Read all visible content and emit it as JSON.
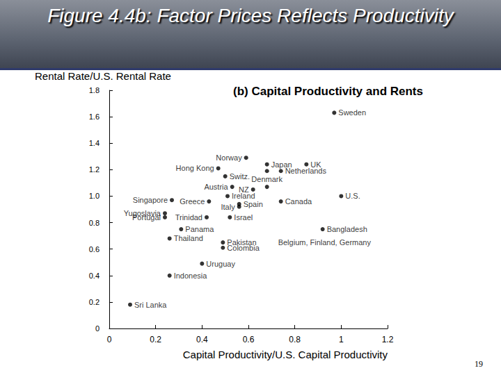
{
  "slide_title": "Figure 4.4b: Factor Prices Reflects Productivity",
  "page_number": "19",
  "chart_data": {
    "type": "scatter",
    "title": "(b) Capital Productivity and Rents",
    "x_label": "Capital Productivity/U.S. Capital Productivity",
    "y_label": "Rental Rate/U.S. Rental Rate",
    "labels": [
      "Sweden",
      "Norway",
      "Japan",
      "UK",
      "Hong Kong",
      "Switz.",
      "Denmark",
      "Netherlands",
      "Austria",
      "NZ",
      "Singapore",
      "Greece",
      "Ireland",
      "Spain",
      "Italy",
      "Canada",
      "U.S.",
      "Yugoslavia",
      "Portugal",
      "Trinidad",
      "Israel",
      "Bangladesh",
      "Panama",
      "Thailand",
      "Pakistan",
      "Colombia",
      "Belgium, Finland, Germany",
      "Uruguay",
      "Indonesia",
      "Sri Lanka"
    ],
    "x": [
      0.97,
      0.59,
      0.68,
      0.85,
      0.47,
      0.5,
      0.68,
      0.74,
      0.53,
      0.62,
      0.27,
      0.43,
      0.51,
      0.56,
      0.56,
      0.74,
      1.0,
      0.24,
      0.24,
      0.42,
      0.52,
      0.92,
      0.31,
      0.26,
      0.49,
      0.49,
      0.68,
      0.4,
      0.26,
      0.09
    ],
    "y": [
      1.63,
      1.29,
      1.24,
      1.24,
      1.21,
      1.15,
      1.19,
      1.19,
      1.07,
      1.05,
      0.97,
      0.96,
      1.0,
      0.94,
      0.92,
      0.96,
      1.0,
      0.87,
      0.84,
      0.84,
      0.84,
      0.75,
      0.75,
      0.68,
      0.65,
      0.61,
      1.07,
      0.49,
      0.4,
      0.18
    ],
    "color": "#000000",
    "marker": "circle",
    "xlim": [
      0,
      1.2
    ],
    "xticks": [
      0,
      0.2,
      0.4,
      0.6,
      0.8,
      1,
      1.2
    ],
    "ylim": [
      0,
      1.8
    ],
    "yticks": [
      0,
      0.2,
      0.4,
      0.6,
      0.8,
      {
        "value": 1,
        "label": "1.0"
      },
      1.2,
      1.4,
      1.6,
      1.8
    ],
    "grid": false
  }
}
